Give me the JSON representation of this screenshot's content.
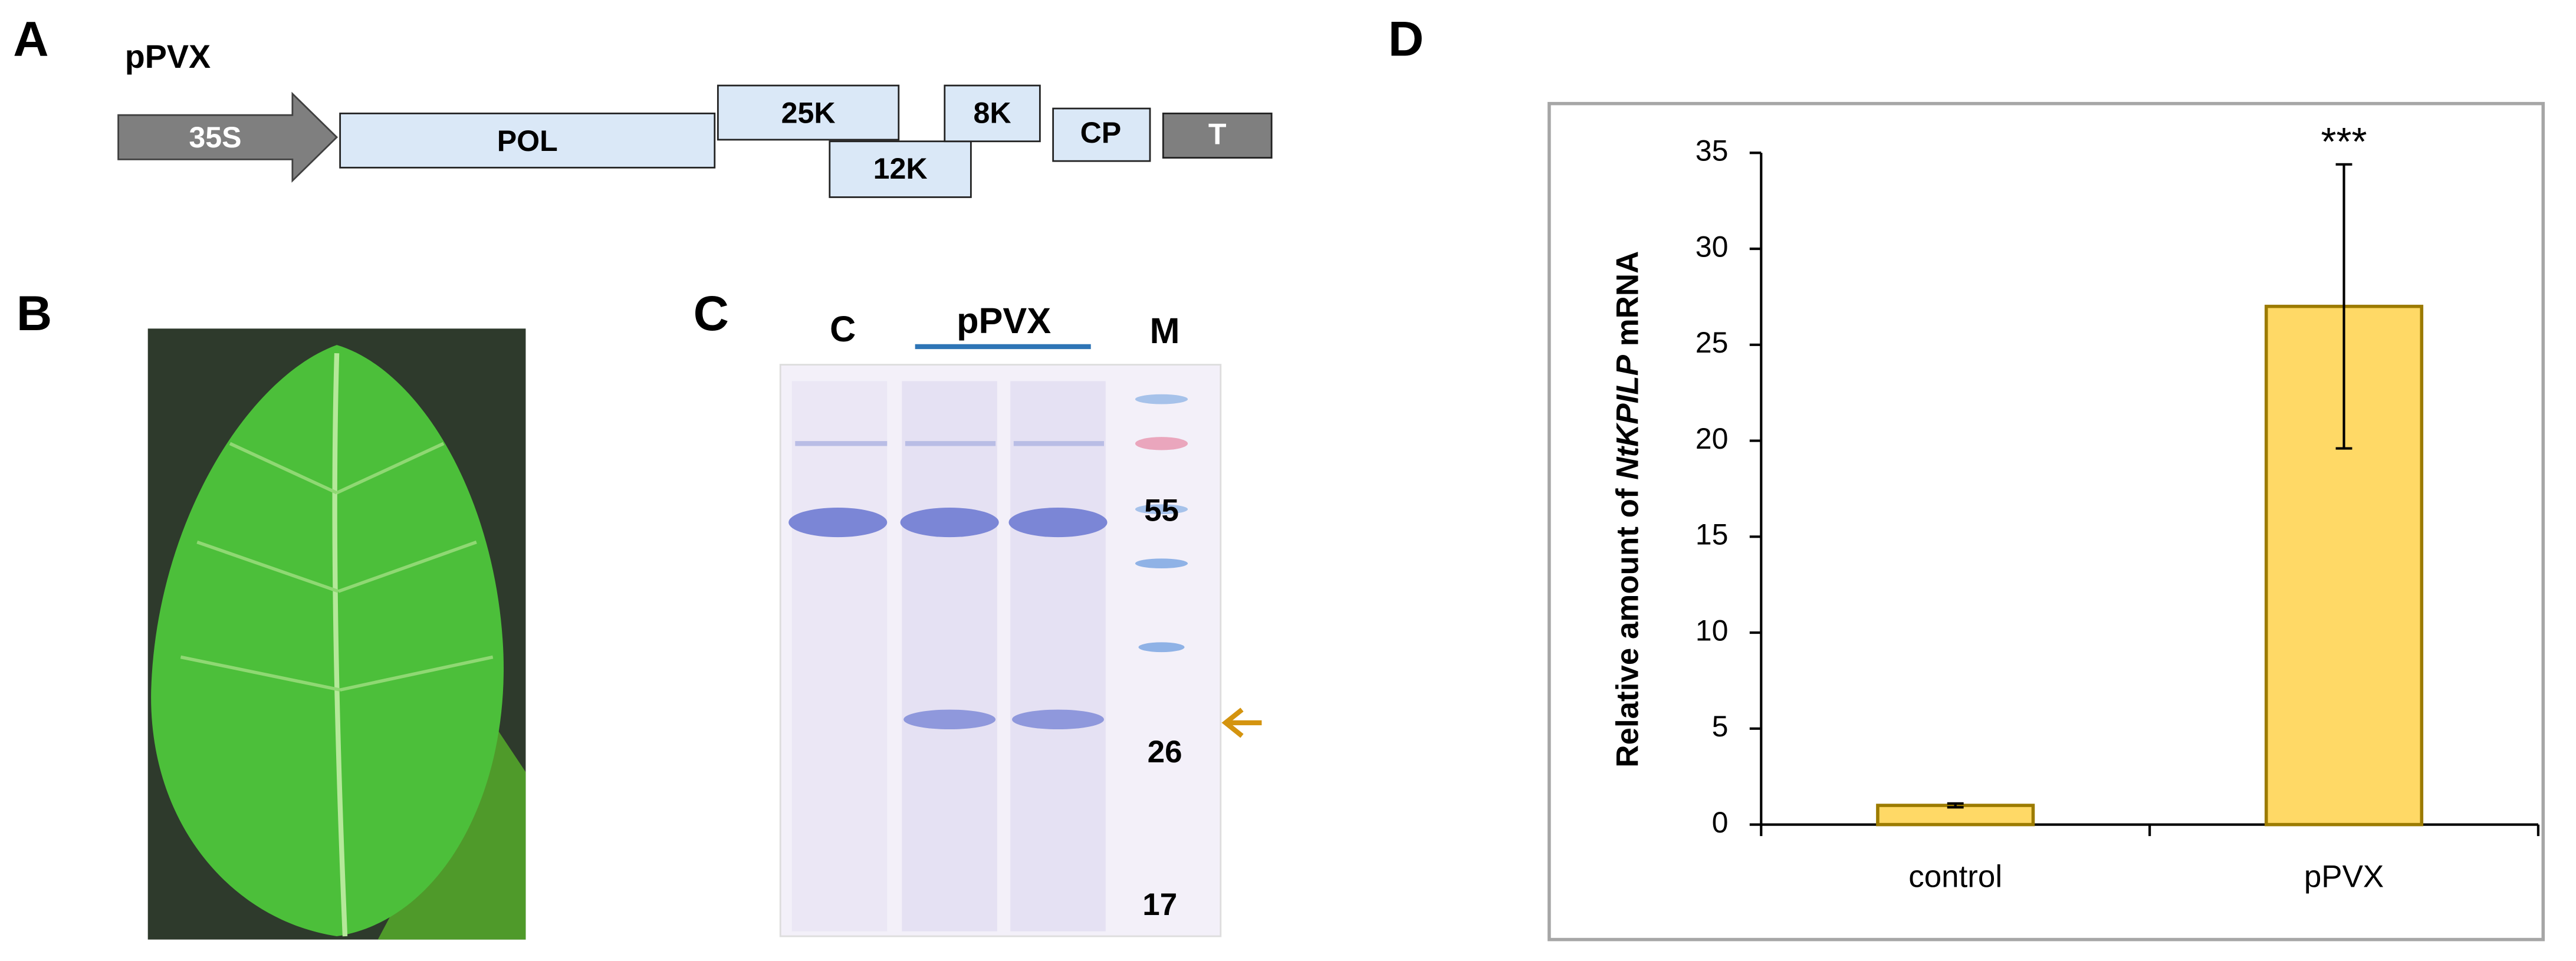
{
  "panel_a": {
    "label": "A",
    "construct": "pPVX",
    "elements": [
      "35S",
      "POL",
      "25K",
      "12K",
      "8K",
      "CP",
      "T"
    ]
  },
  "panel_b": {
    "label": "B"
  },
  "panel_c": {
    "label": "C",
    "lanes": [
      "C",
      "pPVX",
      "M"
    ],
    "markers": [
      "55",
      "26",
      "17"
    ]
  },
  "chart_data": {
    "type": "bar",
    "panel_label": "D",
    "y_label": {
      "prefix": "Relative amount of ",
      "italic": "NtKPILP",
      "suffix": " mRNA"
    },
    "categories": [
      "control",
      "pPVX"
    ],
    "values": [
      1.0,
      27.0
    ],
    "errors": [
      0.1,
      7.4
    ],
    "annotations": [
      null,
      "***"
    ],
    "color": "#ffd966",
    "ylim": [
      0,
      35
    ],
    "yticks": [
      0,
      5,
      10,
      15,
      20,
      25,
      30,
      35
    ]
  }
}
